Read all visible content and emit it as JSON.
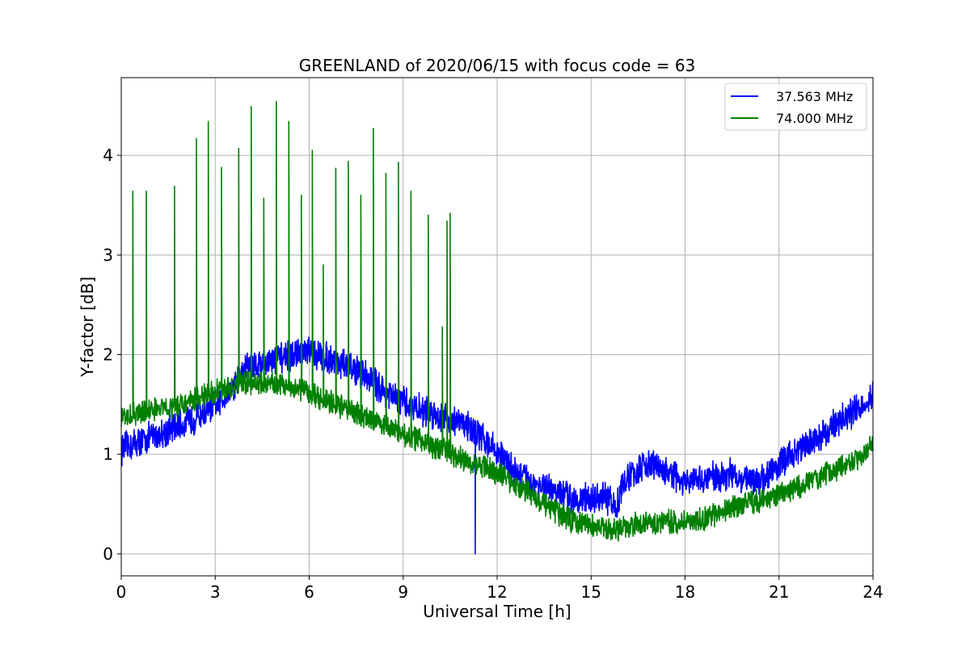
{
  "chart_data": {
    "type": "line",
    "title": "GREENLAND of 2020/06/15 with focus code = 63",
    "xlabel": "Universal Time [h]",
    "ylabel": "Y-factor [dB]",
    "xlim": [
      0,
      24
    ],
    "ylim": [
      -0.22,
      4.78
    ],
    "xticks": [
      0,
      3,
      6,
      9,
      12,
      15,
      18,
      21,
      24
    ],
    "yticks": [
      0,
      1,
      2,
      3,
      4
    ],
    "grid": true,
    "legend_position": "top-right",
    "series": [
      {
        "name": "37.563 MHz",
        "color": "#0000ff",
        "x": [
          0,
          1,
          2,
          3,
          3.5,
          4,
          4.5,
          5,
          5.5,
          6,
          6.5,
          7,
          7.5,
          8,
          8.5,
          9,
          9.5,
          10,
          10.5,
          11,
          11.5,
          12,
          12.5,
          13,
          13.5,
          14,
          14.5,
          15,
          15.5,
          15.8,
          16,
          16.5,
          17,
          17.5,
          18,
          18.5,
          19,
          19.5,
          20,
          20.5,
          21,
          21.5,
          22,
          22.5,
          23,
          23.5,
          24
        ],
        "values": [
          1.05,
          1.18,
          1.3,
          1.48,
          1.65,
          1.88,
          1.92,
          1.95,
          2.0,
          2.02,
          1.98,
          1.92,
          1.85,
          1.75,
          1.6,
          1.52,
          1.45,
          1.4,
          1.35,
          1.3,
          1.18,
          1.02,
          0.85,
          0.74,
          0.66,
          0.6,
          0.56,
          0.55,
          0.56,
          0.46,
          0.7,
          0.85,
          0.9,
          0.8,
          0.7,
          0.74,
          0.78,
          0.8,
          0.74,
          0.75,
          0.9,
          1.02,
          1.12,
          1.22,
          1.35,
          1.45,
          1.58
        ],
        "noise": 0.13,
        "dropout": {
          "x": 11.3,
          "value": 0
        }
      },
      {
        "name": "74.000 MHz",
        "color": "#008000",
        "x": [
          0,
          1,
          2,
          3,
          3.5,
          4,
          4.5,
          5,
          5.5,
          6,
          6.5,
          7,
          7.5,
          8,
          8.5,
          9,
          9.5,
          10,
          10.5,
          11,
          11.5,
          12,
          12.5,
          13,
          13.5,
          14,
          14.5,
          15,
          15.5,
          16,
          16.5,
          17,
          17.5,
          18,
          18.5,
          19,
          19.5,
          20,
          20.5,
          21,
          21.5,
          22,
          22.5,
          23,
          23.5,
          24
        ],
        "values": [
          1.35,
          1.45,
          1.5,
          1.62,
          1.68,
          1.72,
          1.72,
          1.7,
          1.68,
          1.62,
          1.55,
          1.48,
          1.42,
          1.35,
          1.28,
          1.2,
          1.15,
          1.08,
          1.02,
          0.95,
          0.88,
          0.82,
          0.72,
          0.62,
          0.5,
          0.4,
          0.32,
          0.28,
          0.24,
          0.26,
          0.3,
          0.32,
          0.32,
          0.33,
          0.34,
          0.4,
          0.46,
          0.52,
          0.54,
          0.6,
          0.66,
          0.72,
          0.8,
          0.88,
          0.96,
          1.08
        ],
        "noise": 0.1,
        "spikes": [
          {
            "x": 0.37,
            "value": 3.64
          },
          {
            "x": 0.8,
            "value": 3.64
          },
          {
            "x": 1.7,
            "value": 3.69
          },
          {
            "x": 2.4,
            "value": 4.17
          },
          {
            "x": 2.78,
            "value": 4.34
          },
          {
            "x": 3.2,
            "value": 3.88
          },
          {
            "x": 3.75,
            "value": 4.07
          },
          {
            "x": 4.15,
            "value": 4.49
          },
          {
            "x": 4.55,
            "value": 3.57
          },
          {
            "x": 4.95,
            "value": 4.54
          },
          {
            "x": 5.35,
            "value": 4.34
          },
          {
            "x": 5.75,
            "value": 3.6
          },
          {
            "x": 6.1,
            "value": 4.05
          },
          {
            "x": 6.45,
            "value": 2.9
          },
          {
            "x": 6.85,
            "value": 3.87
          },
          {
            "x": 7.25,
            "value": 3.94
          },
          {
            "x": 7.65,
            "value": 3.6
          },
          {
            "x": 8.05,
            "value": 4.27
          },
          {
            "x": 8.45,
            "value": 3.82
          },
          {
            "x": 8.85,
            "value": 3.93
          },
          {
            "x": 9.25,
            "value": 3.64
          },
          {
            "x": 9.8,
            "value": 3.4
          },
          {
            "x": 10.25,
            "value": 2.28
          },
          {
            "x": 10.4,
            "value": 3.34
          },
          {
            "x": 10.5,
            "value": 3.42
          }
        ]
      }
    ]
  }
}
